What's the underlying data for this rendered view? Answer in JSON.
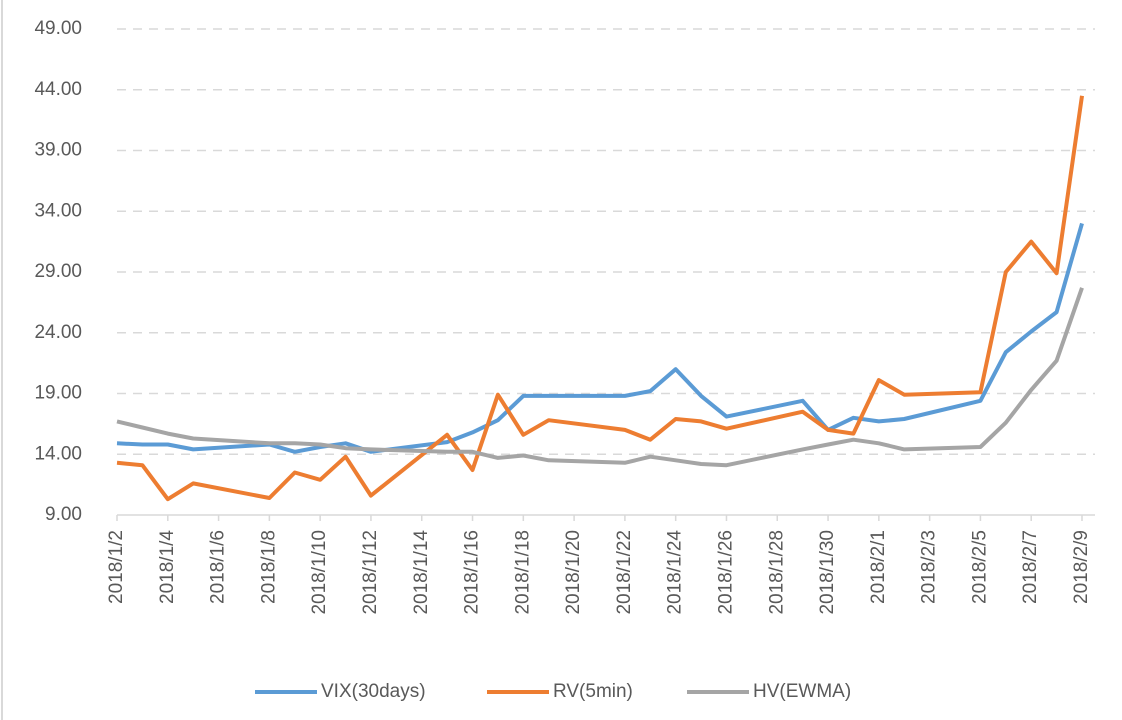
{
  "chart_data": {
    "type": "line",
    "x": [
      "2018/1/2",
      "2018/1/3",
      "2018/1/4",
      "2018/1/5",
      "2018/1/8",
      "2018/1/9",
      "2018/1/10",
      "2018/1/11",
      "2018/1/12",
      "2018/1/15",
      "2018/1/16",
      "2018/1/17",
      "2018/1/18",
      "2018/1/19",
      "2018/1/22",
      "2018/1/23",
      "2018/1/24",
      "2018/1/25",
      "2018/1/26",
      "2018/1/29",
      "2018/1/30",
      "2018/1/31",
      "2018/2/1",
      "2018/2/2",
      "2018/2/5",
      "2018/2/6",
      "2018/2/7",
      "2018/2/8",
      "2018/2/9"
    ],
    "series": [
      {
        "name": "VIX(30days)",
        "color": "#5b9bd5",
        "values": [
          14.9,
          14.8,
          14.8,
          14.4,
          14.8,
          14.2,
          14.6,
          14.9,
          14.2,
          15.0,
          15.8,
          16.8,
          18.8,
          18.8,
          18.8,
          19.2,
          21.0,
          18.8,
          17.1,
          18.4,
          16.0,
          17.0,
          16.7,
          16.9,
          18.4,
          22.4,
          24.1,
          25.7,
          33.0
        ]
      },
      {
        "name": "RV(5min)",
        "color": "#ed7d31",
        "values": [
          13.3,
          13.1,
          10.3,
          11.6,
          10.4,
          12.5,
          11.9,
          13.8,
          10.6,
          15.6,
          12.7,
          18.9,
          15.6,
          16.8,
          16.0,
          15.2,
          16.9,
          16.7,
          16.1,
          17.5,
          16.0,
          15.7,
          20.1,
          18.9,
          19.1,
          29.0,
          31.5,
          28.9,
          43.5
        ]
      },
      {
        "name": "HV(EWMA)",
        "color": "#a5a5a5",
        "values": [
          16.7,
          16.2,
          15.7,
          15.3,
          14.9,
          14.9,
          14.8,
          14.5,
          14.4,
          14.2,
          14.2,
          13.7,
          13.9,
          13.5,
          13.3,
          13.8,
          13.5,
          13.2,
          13.1,
          14.4,
          14.8,
          15.2,
          14.9,
          14.4,
          14.6,
          16.6,
          19.3,
          21.7,
          27.7
        ]
      }
    ],
    "xlim": [
      "2018/1/2",
      "2018/2/9"
    ],
    "xticks": [
      "2018/1/2",
      "2018/1/4",
      "2018/1/6",
      "2018/1/8",
      "2018/1/10",
      "2018/1/12",
      "2018/1/14",
      "2018/1/16",
      "2018/1/18",
      "2018/1/20",
      "2018/1/22",
      "2018/1/24",
      "2018/1/26",
      "2018/1/28",
      "2018/1/30",
      "2018/2/1",
      "2018/2/3",
      "2018/2/5",
      "2018/2/7",
      "2018/2/9"
    ],
    "ylim": [
      9,
      49
    ],
    "yticks": [
      {
        "value": 9,
        "label": "9.00"
      },
      {
        "value": 14,
        "label": "14.00"
      },
      {
        "value": 19,
        "label": "19.00"
      },
      {
        "value": 24,
        "label": "24.00"
      },
      {
        "value": 29,
        "label": "29.00"
      },
      {
        "value": 34,
        "label": "34.00"
      },
      {
        "value": 39,
        "label": "39.00"
      },
      {
        "value": 44,
        "label": "44.00"
      },
      {
        "value": 49,
        "label": "49.00"
      }
    ],
    "grid": true,
    "legend": "bottom"
  }
}
